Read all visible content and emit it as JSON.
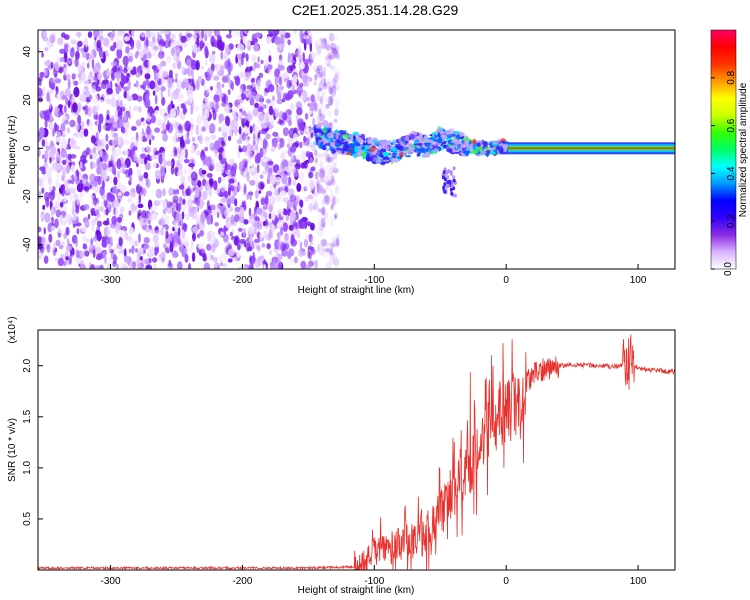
{
  "title": "C2E1.2025.351.14.28.G29",
  "chart_data": [
    {
      "type": "heatmap",
      "title": "C2E1.2025.351.14.28.G29",
      "xlabel": "Height of straight line (km)",
      "ylabel": "Frequency (Hz)",
      "xlim": [
        -355,
        128
      ],
      "ylim": [
        -50,
        49
      ],
      "xticks": [
        -300,
        -200,
        -100,
        0,
        100
      ],
      "xtick_labels": [
        "-300",
        "-200",
        "-100",
        "0",
        "100"
      ],
      "yticks": [
        -40,
        -20,
        0,
        20,
        40
      ],
      "ytick_labels": [
        "-40",
        "-20",
        "0",
        "20",
        "40"
      ],
      "noise_region_x": [
        -355,
        -135
      ],
      "signal_trace": [
        {
          "x": -145,
          "y": 5
        },
        {
          "x": -130,
          "y": 3
        },
        {
          "x": -120,
          "y": 2
        },
        {
          "x": -110,
          "y": 1
        },
        {
          "x": -100,
          "y": -1
        },
        {
          "x": -90,
          "y": -2
        },
        {
          "x": -80,
          "y": 0
        },
        {
          "x": -70,
          "y": 2
        },
        {
          "x": -60,
          "y": 1
        },
        {
          "x": -50,
          "y": 4
        },
        {
          "x": -40,
          "y": 3
        },
        {
          "x": -30,
          "y": 1
        },
        {
          "x": -20,
          "y": 0
        },
        {
          "x": -10,
          "y": 0
        },
        {
          "x": 0,
          "y": 1
        },
        {
          "x": 10,
          "y": 0
        },
        {
          "x": 30,
          "y": 0
        },
        {
          "x": 60,
          "y": 0
        },
        {
          "x": 90,
          "y": 0
        },
        {
          "x": 128,
          "y": 0
        }
      ],
      "colorbar": {
        "label": "Normalized spectral amplitude",
        "range": [
          0,
          1
        ],
        "ticks": [
          0.0,
          0.2,
          0.4,
          0.6,
          0.8
        ],
        "tick_labels": [
          "0.0",
          "0.2",
          "0.4",
          "0.6",
          "0.8"
        ],
        "colors": [
          "#ffffff",
          "#d9b3ff",
          "#8a2be2",
          "#3300ff",
          "#0000ff",
          "#0099ff",
          "#00ffff",
          "#00ff66",
          "#33ff00",
          "#ccff00",
          "#ffff00",
          "#ff9900",
          "#ff3300",
          "#ff0000",
          "#ff0066"
        ]
      }
    },
    {
      "type": "line",
      "xlabel": "Height of straight line (km)",
      "ylabel": "SNR (10 * v/v)",
      "y_multiplier": "(x10⁴)",
      "xlim": [
        -355,
        128
      ],
      "ylim": [
        0,
        2.35
      ],
      "xticks": [
        -300,
        -200,
        -100,
        0,
        100
      ],
      "xtick_labels": [
        "-300",
        "-200",
        "-100",
        "0",
        "100"
      ],
      "yticks": [
        0.5,
        1.0,
        1.5,
        2.0
      ],
      "ytick_labels": [
        "0.5",
        "1.0",
        "1.5",
        "2.0"
      ],
      "line_color": "#e8322e",
      "series": [
        {
          "name": "SNR",
          "x": [
            -355,
            -300,
            -250,
            -200,
            -150,
            -115,
            -105,
            -100,
            -90,
            -80,
            -70,
            -60,
            -50,
            -40,
            -30,
            -20,
            -10,
            0,
            10,
            20,
            30,
            40,
            60,
            80,
            90,
            95,
            100,
            110,
            128
          ],
          "y": [
            0.02,
            0.02,
            0.02,
            0.02,
            0.02,
            0.03,
            0.1,
            0.2,
            0.22,
            0.25,
            0.3,
            0.4,
            0.55,
            0.75,
            0.95,
            1.2,
            1.45,
            1.55,
            1.75,
            1.9,
            1.98,
            2.0,
            2.01,
            1.99,
            2.0,
            2.05,
            1.97,
            1.96,
            1.94
          ]
        }
      ]
    }
  ]
}
